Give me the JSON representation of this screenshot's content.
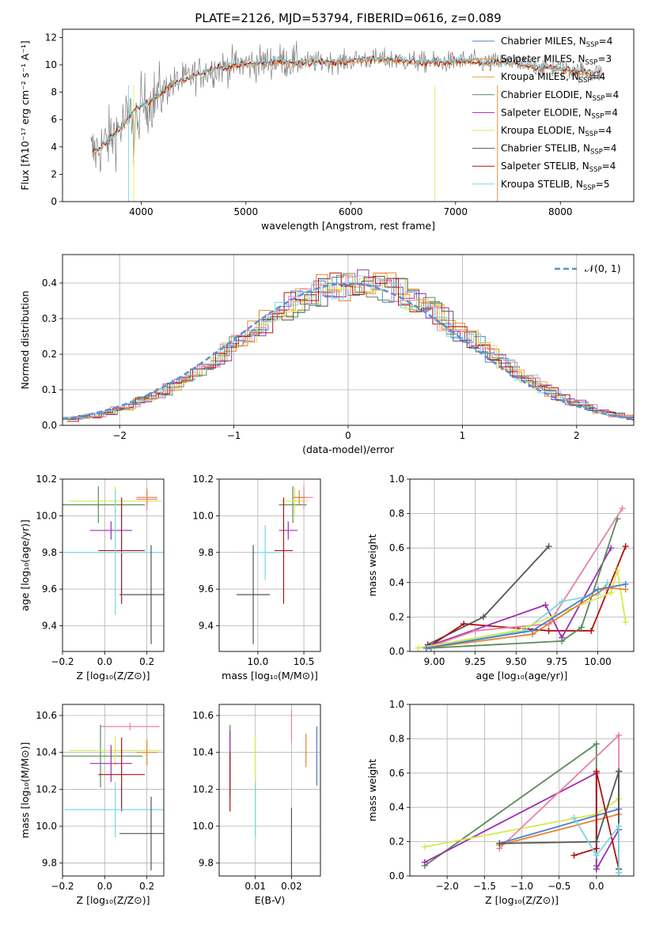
{
  "colors": {
    "chabrier_miles": "#4a7fd0",
    "salpeter_miles": "#e8832a",
    "kroupa_miles": "#f0a030",
    "chabrier_elodie": "#5a8a5a",
    "salpeter_elodie": "#9a30b0",
    "kroupa_elodie": "#d8e850",
    "chabrier_stelib": "#555555",
    "salpeter_stelib": "#b01010",
    "kroupa_stelib": "#7ad8e0",
    "pink": "#e880a8",
    "normal": "#5a8fd8",
    "grid": "#b0b0b0"
  },
  "chart_data": [
    {
      "id": "spectrum",
      "type": "line",
      "title": "PLATE=2126, MJD=53794, FIBERID=0616, z=0.089",
      "xlabel": "wavelength [Angstrom, rest frame]",
      "ylabel": "Flux [fλ10⁻¹⁷ erg cm⁻² s⁻¹ A⁻¹]",
      "xlim": [
        3250,
        8700
      ],
      "ylim": [
        0,
        12.6
      ],
      "xticks": [
        "4000",
        "5000",
        "6000",
        "7000",
        "8000"
      ],
      "yticks": [
        "0",
        "2",
        "4",
        "6",
        "8",
        "10",
        "12"
      ],
      "legend_position": "right",
      "legend": [
        "Chabrier MILES, N_SSP=4",
        "Salpeter MILES, N_SSP=3",
        "Kroupa MILES, N_SSP=4",
        "Chabrier ELODIE, N_SSP=4",
        "Salpeter ELODIE, N_SSP=4",
        "Kroupa ELODIE, N_SSP=4",
        "Chabrier STELIB, N_SSP=4",
        "Salpeter STELIB, N_SSP=4",
        "Kroupa STELIB, N_SSP=5"
      ],
      "model_x": [
        3550,
        3650,
        3800,
        3950,
        4100,
        4300,
        4500,
        4700,
        4900,
        5100,
        5300,
        5500,
        5700,
        5900,
        6100,
        6300,
        6500,
        6700,
        6900,
        7100,
        7300,
        7500,
        7700,
        7900,
        8100,
        8300
      ],
      "model_y": [
        3.6,
        4.2,
        5.4,
        6.8,
        7.4,
        8.6,
        9.2,
        9.7,
        10.0,
        10.1,
        10.3,
        10.2,
        10.2,
        10.2,
        10.4,
        10.4,
        10.3,
        10.2,
        10.2,
        10.3,
        10.1,
        10.2,
        9.9,
        9.8,
        9.6,
        9.4
      ]
    },
    {
      "id": "residuals",
      "type": "step",
      "xlabel": "(data-model)/error",
      "ylabel": "Normed distribution",
      "xlim": [
        -2.5,
        2.5
      ],
      "ylim": [
        0,
        0.48
      ],
      "xticks": [
        "−2",
        "−1",
        "0",
        "1",
        "2"
      ],
      "yticks": [
        "0.0",
        "0.1",
        "0.2",
        "0.3",
        "0.4"
      ],
      "legend": [
        "𝒩(0, 1)"
      ],
      "legend_position": "top-right",
      "normal": {
        "mu": 0,
        "sigma": 1
      }
    },
    {
      "id": "age_vs_Z",
      "type": "errorbar",
      "xlabel": "Z [log₁₀(Z/Z⊙)]",
      "ylabel": "age  [log₁₀(age/yr)]",
      "xlim": [
        -0.2,
        0.28
      ],
      "ylim": [
        9.26,
        10.2
      ],
      "xticks": [
        "−0.2",
        "0.0",
        "0.2"
      ],
      "yticks": [
        "9.4",
        "9.6",
        "9.8",
        "10.0",
        "10.2"
      ],
      "points": [
        {
          "c": "chabrier_elodie",
          "x": -0.03,
          "xe": 0.22,
          "y": 10.06,
          "ye": 0.1
        },
        {
          "c": "kroupa_elodie",
          "x": 0.05,
          "xe": 0.22,
          "y": 10.08,
          "ye": 0.08
        },
        {
          "c": "pink",
          "x": 0.2,
          "xe": 0.05,
          "y": 10.09,
          "ye": 0.06
        },
        {
          "c": "salpeter_miles",
          "x": 0.2,
          "xe": 0.05,
          "y": 10.1,
          "ye": 0.04
        },
        {
          "c": "salpeter_elodie",
          "x": 0.03,
          "xe": 0.1,
          "y": 9.92,
          "ye": 0.05
        },
        {
          "c": "salpeter_stelib",
          "x": 0.08,
          "xe": 0.11,
          "y": 9.81,
          "ye": 0.29
        },
        {
          "c": "kroupa_stelib",
          "x": 0.05,
          "xe": 0.24,
          "y": 9.8,
          "ye": 0.34
        },
        {
          "c": "chabrier_stelib",
          "x": 0.22,
          "xe": 0.15,
          "y": 9.57,
          "ye": 0.27
        }
      ]
    },
    {
      "id": "age_vs_mass",
      "type": "errorbar",
      "xlabel": "mass [log₁₀(M/M⊙)]",
      "xlim": [
        9.58,
        10.68
      ],
      "ylim": [
        9.26,
        10.2
      ],
      "xticks": [
        "10.0",
        "10.5"
      ],
      "yticks": [
        "9.4",
        "9.6",
        "9.8",
        "10.0",
        "10.2"
      ],
      "points": [
        {
          "c": "chabrier_elodie",
          "x": 10.38,
          "xe": 0.15,
          "y": 10.06,
          "ye": 0.1
        },
        {
          "c": "kroupa_elodie",
          "x": 10.4,
          "xe": 0.15,
          "y": 10.08,
          "ye": 0.08
        },
        {
          "c": "pink",
          "x": 10.5,
          "xe": 0.1,
          "y": 10.1,
          "ye": 0.06
        },
        {
          "c": "salpeter_miles",
          "x": 10.45,
          "xe": 0.08,
          "y": 10.1,
          "ye": 0.04
        },
        {
          "c": "salpeter_elodie",
          "x": 10.33,
          "xe": 0.1,
          "y": 9.92,
          "ye": 0.05
        },
        {
          "c": "salpeter_stelib",
          "x": 10.28,
          "xe": 0.1,
          "y": 9.81,
          "ye": 0.29
        },
        {
          "c": "kroupa_stelib",
          "x": 10.08,
          "xe": 0.15,
          "y": 9.8,
          "ye": 0.15
        },
        {
          "c": "chabrier_stelib",
          "x": 9.95,
          "xe": 0.18,
          "y": 9.57,
          "ye": 0.27
        }
      ]
    },
    {
      "id": "weight_vs_age",
      "type": "line",
      "xlabel": "age  [log₁₀(age/yr)]",
      "ylabel": "mass weight",
      "xlim": [
        8.85,
        10.22
      ],
      "ylim": [
        0,
        1
      ],
      "xticks": [
        "9.00",
        "9.25",
        "9.50",
        "9.75",
        "10.00"
      ],
      "yticks": [
        "0.0",
        "0.2",
        "0.4",
        "0.6",
        "0.8",
        "1.0"
      ],
      "series": [
        {
          "c": "chabrier_stelib",
          "x": [
            8.96,
            9.3,
            9.7
          ],
          "y": [
            0.04,
            0.2,
            0.61
          ]
        },
        {
          "c": "salpeter_stelib",
          "x": [
            8.97,
            9.18,
            9.7,
            9.96,
            10.17
          ],
          "y": [
            0.03,
            0.16,
            0.12,
            0.12,
            0.61
          ]
        },
        {
          "c": "salpeter_elodie",
          "x": [
            8.96,
            9.68,
            9.78,
            10.08
          ],
          "y": [
            0.03,
            0.27,
            0.08,
            0.6
          ]
        },
        {
          "c": "chabrier_elodie",
          "x": [
            8.98,
            9.78,
            9.9,
            10.12
          ],
          "y": [
            0.02,
            0.06,
            0.14,
            0.77
          ]
        },
        {
          "c": "pink",
          "x": [
            8.95,
            9.25,
            9.7,
            10.15
          ],
          "y": [
            0.02,
            0.12,
            0.16,
            0.83
          ]
        },
        {
          "c": "kroupa_stelib",
          "x": [
            8.95,
            9.55,
            9.78,
            10.0,
            10.06
          ],
          "y": [
            0.02,
            0.12,
            0.29,
            0.33,
            0.4
          ]
        },
        {
          "c": "kroupa_elodie",
          "x": [
            8.9,
            9.5,
            10.08,
            10.12,
            10.17
          ],
          "y": [
            0.02,
            0.12,
            0.34,
            0.47,
            0.17
          ]
        },
        {
          "c": "salpeter_miles",
          "x": [
            8.95,
            9.6,
            10.05,
            10.17
          ],
          "y": [
            0.02,
            0.1,
            0.37,
            0.36
          ]
        },
        {
          "c": "chabrier_miles",
          "x": [
            8.95,
            9.6,
            10.0,
            10.17
          ],
          "y": [
            0.02,
            0.12,
            0.36,
            0.39
          ]
        }
      ]
    },
    {
      "id": "mass_vs_Z",
      "type": "errorbar",
      "xlabel": "Z [log₁₀(Z/Z⊙)]",
      "ylabel": "mass [log₁₀(M/M⊙)]",
      "xlim": [
        -0.2,
        0.28
      ],
      "ylim": [
        9.73,
        10.66
      ],
      "xticks": [
        "−0.2",
        "0.0",
        "0.2"
      ],
      "yticks": [
        "9.8",
        "10.0",
        "10.2",
        "10.4",
        "10.6"
      ],
      "points": [
        {
          "c": "pink",
          "x": 0.12,
          "xe": 0.14,
          "y": 10.54,
          "ye": 0.02
        },
        {
          "c": "chabrier_elodie",
          "x": -0.02,
          "xe": 0.2,
          "y": 10.38,
          "ye": 0.17
        },
        {
          "c": "kroupa_elodie",
          "x": 0.05,
          "xe": 0.22,
          "y": 10.41,
          "ye": 0.08
        },
        {
          "c": "salpeter_miles",
          "x": 0.2,
          "xe": 0.05,
          "y": 10.4,
          "ye": 0.07
        },
        {
          "c": "salpeter_elodie",
          "x": 0.03,
          "xe": 0.1,
          "y": 10.34,
          "ye": 0.1
        },
        {
          "c": "salpeter_stelib",
          "x": 0.08,
          "xe": 0.11,
          "y": 10.28,
          "ye": 0.2
        },
        {
          "c": "kroupa_stelib",
          "x": 0.05,
          "xe": 0.24,
          "y": 10.09,
          "ye": 0.15
        },
        {
          "c": "chabrier_stelib",
          "x": 0.22,
          "xe": 0.15,
          "y": 9.96,
          "ye": 0.2
        }
      ]
    },
    {
      "id": "mass_vs_ebv",
      "type": "errorbar",
      "xlabel": "E(B-V)",
      "xlim": [
        0.0,
        0.028
      ],
      "ylim": [
        9.73,
        10.66
      ],
      "xticks": [
        "0.01",
        "0.02"
      ],
      "yticks": [
        "9.8",
        "10.0",
        "10.2",
        "10.4",
        "10.6"
      ],
      "points": [
        {
          "c": "chabrier_elodie",
          "x": 0.003,
          "xe": 0,
          "y": 10.38,
          "ye": 0.17
        },
        {
          "c": "salpeter_elodie",
          "x": 0.003,
          "xe": 0,
          "y": 10.34,
          "ye": 0.18
        },
        {
          "c": "salpeter_stelib",
          "x": 0.003,
          "xe": 0,
          "y": 10.24,
          "ye": 0.16
        },
        {
          "c": "kroupa_elodie",
          "x": 0.01,
          "xe": 0,
          "y": 10.21,
          "ye": 0.28
        },
        {
          "c": "kroupa_stelib",
          "x": 0.01,
          "xe": 0,
          "y": 10.09,
          "ye": 0.15
        },
        {
          "c": "pink",
          "x": 0.02,
          "xe": 0,
          "y": 10.54,
          "ye": 0.09
        },
        {
          "c": "chabrier_stelib",
          "x": 0.02,
          "xe": 0,
          "y": 9.9,
          "ye": 0.2
        },
        {
          "c": "salpeter_miles",
          "x": 0.024,
          "xe": 0,
          "y": 10.41,
          "ye": 0.09
        },
        {
          "c": "chabrier_miles",
          "x": 0.027,
          "xe": 0,
          "y": 10.38,
          "ye": 0.16
        }
      ]
    },
    {
      "id": "weight_vs_Z",
      "type": "line",
      "xlabel": "Z [log₁₀(Z/Z⊙)]",
      "ylabel": "mass weight",
      "xlim": [
        -2.5,
        0.5
      ],
      "ylim": [
        0,
        1
      ],
      "xticks": [
        "−2.0",
        "−1.5",
        "−1.0",
        "−0.5",
        "0.0"
      ],
      "yticks": [
        "0.0",
        "0.2",
        "0.4",
        "0.6",
        "0.8",
        "1.0"
      ],
      "series": [
        {
          "c": "chabrier_elodie",
          "x": [
            -2.3,
            0.0,
            0.0
          ],
          "y": [
            0.06,
            0.77,
            0.06
          ]
        },
        {
          "c": "salpeter_elodie",
          "x": [
            -2.3,
            0.0,
            0.0,
            0.3
          ],
          "y": [
            0.08,
            0.6,
            0.04,
            0.27
          ]
        },
        {
          "c": "kroupa_elodie",
          "x": [
            -2.3,
            0.0,
            0.3,
            0.3
          ],
          "y": [
            0.17,
            0.36,
            0.45,
            0.02
          ]
        },
        {
          "c": "pink",
          "x": [
            -1.3,
            0.3,
            0.3
          ],
          "y": [
            0.16,
            0.82,
            0.02
          ]
        },
        {
          "c": "salpeter_miles",
          "x": [
            -1.3,
            0.3,
            0.3
          ],
          "y": [
            0.18,
            0.36,
            0.02
          ]
        },
        {
          "c": "chabrier_miles",
          "x": [
            -1.3,
            0.3,
            0.3
          ],
          "y": [
            0.19,
            0.39,
            0.02
          ]
        },
        {
          "c": "salpeter_stelib",
          "x": [
            -0.3,
            0.0,
            0.0,
            0.3,
            0.3
          ],
          "y": [
            0.12,
            0.16,
            0.61,
            0.04,
            0.61
          ]
        },
        {
          "c": "chabrier_stelib",
          "x": [
            -1.3,
            0.0,
            0.3,
            0.3
          ],
          "y": [
            0.19,
            0.2,
            0.61,
            0.04
          ]
        },
        {
          "c": "kroupa_stelib",
          "x": [
            -0.3,
            0.0,
            0.3,
            0.3
          ],
          "y": [
            0.34,
            0.12,
            0.29,
            0.02
          ]
        }
      ]
    }
  ]
}
